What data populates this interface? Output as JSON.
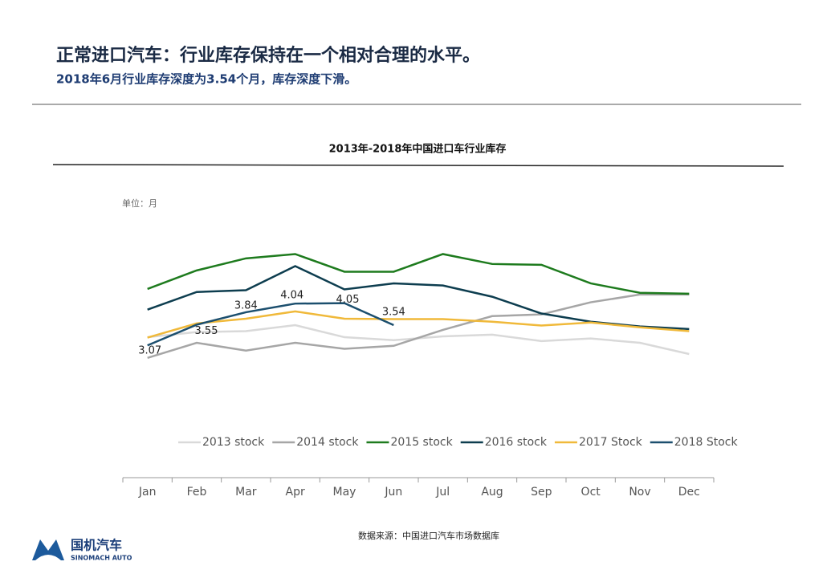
{
  "header": {
    "title": "正常进口汽车：行业库存保持在一个相对合理的水平。",
    "subtitle": "2018年6月行业库存深度为3.54个月，库存深度下滑。"
  },
  "chart_data": {
    "type": "line",
    "title": "2013年-2018年中国进口车行业库存",
    "unit_label": "单位：月",
    "categories": [
      "Jan",
      "Feb",
      "Mar",
      "Apr",
      "May",
      "Jun",
      "Jul",
      "Aug",
      "Sep",
      "Oct",
      "Nov",
      "Dec"
    ],
    "ylim": [
      0,
      6
    ],
    "series": [
      {
        "name": "2013 stock",
        "color": "#d9d9d9",
        "values": [
          3.26,
          3.38,
          3.4,
          3.54,
          3.26,
          3.19,
          3.28,
          3.32,
          3.17,
          3.23,
          3.13,
          2.87
        ]
      },
      {
        "name": "2014 stock",
        "color": "#a6a6a6",
        "values": [
          2.78,
          3.13,
          2.95,
          3.13,
          2.99,
          3.06,
          3.43,
          3.75,
          3.79,
          4.07,
          4.25,
          4.25
        ]
      },
      {
        "name": "2015 stock",
        "color": "#1e7b1e",
        "values": [
          4.38,
          4.81,
          5.09,
          5.19,
          4.78,
          4.78,
          5.19,
          4.96,
          4.94,
          4.51,
          4.29,
          4.27
        ]
      },
      {
        "name": "2016 stock",
        "color": "#0d3d4f",
        "values": [
          3.9,
          4.31,
          4.35,
          4.91,
          4.37,
          4.51,
          4.46,
          4.2,
          3.81,
          3.62,
          3.51,
          3.45
        ]
      },
      {
        "name": "2017 Stock",
        "color": "#f0b93a",
        "values": [
          3.25,
          3.58,
          3.69,
          3.86,
          3.69,
          3.68,
          3.68,
          3.62,
          3.53,
          3.6,
          3.49,
          3.4
        ]
      },
      {
        "name": "2018 Stock",
        "color": "#1c4f6e",
        "values": [
          3.07,
          3.55,
          3.84,
          4.04,
          4.05,
          3.54,
          null,
          null,
          null,
          null,
          null,
          null
        ],
        "data_labels": true
      }
    ],
    "source": "数据来源：中国进口汽车市场数据库"
  },
  "footer": {
    "brand": "国机汽车",
    "brand_en": "SINOMACH AUTO"
  }
}
